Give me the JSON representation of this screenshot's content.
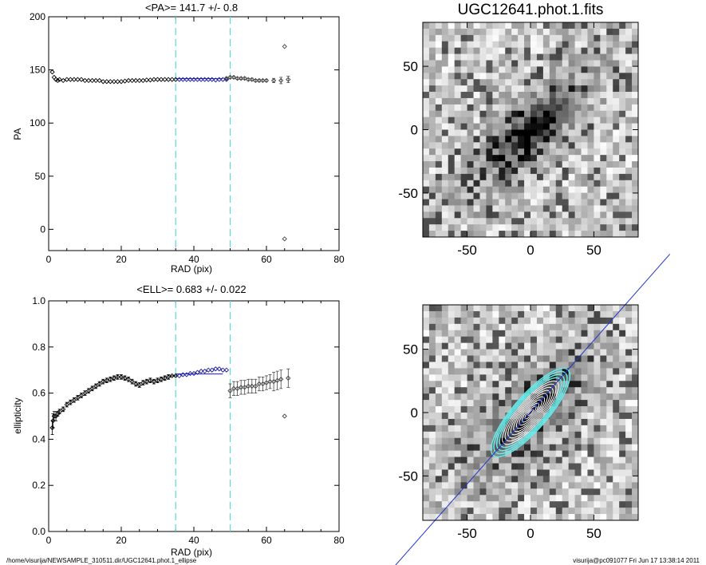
{
  "chart_data": [
    {
      "type": "scatter",
      "title": "<PA>= 141.7 +/-   0.8",
      "xlabel": "RAD (pix)",
      "ylabel": "PA",
      "xlim": [
        0,
        80
      ],
      "ylim": [
        -20,
        200
      ],
      "xticks": [
        "0",
        "20",
        "40",
        "60",
        "80"
      ],
      "yticks": [
        "0",
        "50",
        "100",
        "150",
        "200"
      ],
      "vlines": [
        35,
        50
      ],
      "fit": {
        "value": 141.7,
        "x_range": [
          35,
          50
        ]
      },
      "series": [
        {
          "points": [
            [
              1,
              148
            ],
            [
              1.5,
              143
            ],
            [
              2,
              141
            ],
            [
              2.5,
              140
            ],
            [
              3,
              141
            ],
            [
              4,
              140
            ],
            [
              5,
              141
            ],
            [
              6,
              141
            ],
            [
              7,
              141
            ],
            [
              8,
              141
            ],
            [
              9,
              141
            ],
            [
              10,
              140
            ],
            [
              11,
              140
            ],
            [
              12,
              140
            ],
            [
              13,
              140
            ],
            [
              14,
              140
            ],
            [
              15,
              139
            ],
            [
              16,
              139
            ],
            [
              17,
              139
            ],
            [
              18,
              139
            ],
            [
              19,
              139
            ],
            [
              20,
              139
            ],
            [
              21,
              139.5
            ],
            [
              22,
              140
            ],
            [
              23,
              140
            ],
            [
              24,
              140
            ],
            [
              25,
              140
            ],
            [
              26,
              140
            ],
            [
              27,
              140.5
            ],
            [
              28,
              140.5
            ],
            [
              29,
              141
            ],
            [
              30,
              141
            ],
            [
              31,
              141
            ],
            [
              32,
              141
            ],
            [
              33,
              141
            ],
            [
              34,
              141
            ],
            [
              35,
              141
            ]
          ]
        },
        {
          "points": [
            [
              36,
              141
            ],
            [
              37,
              141
            ],
            [
              38,
              141
            ],
            [
              39,
              141
            ],
            [
              40,
              141
            ],
            [
              41,
              141
            ],
            [
              42,
              141
            ],
            [
              43,
              141
            ],
            [
              44,
              141
            ],
            [
              45,
              141
            ],
            [
              46,
              140.5
            ],
            [
              47,
              141
            ],
            [
              48,
              141
            ],
            [
              49,
              141
            ]
          ]
        },
        {
          "points": [
            [
              49,
              142
            ],
            [
              50,
              143
            ],
            [
              51,
              143
            ],
            [
              52,
              142
            ],
            [
              53,
              142
            ],
            [
              54,
              142
            ],
            [
              55,
              141
            ],
            [
              56,
              141
            ],
            [
              57,
              140
            ],
            [
              58,
              140
            ],
            [
              59,
              140
            ],
            [
              60,
              140
            ],
            [
              62,
              140
            ],
            [
              64,
              140
            ],
            [
              66,
              141
            ]
          ],
          "errors": [
            1,
            1,
            1,
            1,
            1,
            1,
            1,
            1,
            1,
            1,
            1,
            1,
            2,
            3,
            3
          ]
        },
        {
          "points": [
            [
              65,
              172
            ],
            [
              65,
              -9
            ]
          ]
        }
      ]
    },
    {
      "type": "scatter",
      "title": "<ELL>= 0.683 +/-  0.022",
      "xlabel": "RAD (pix)",
      "ylabel": "ellipticity",
      "xlim": [
        0,
        80
      ],
      "ylim": [
        0.0,
        1.0
      ],
      "xticks": [
        "0",
        "20",
        "40",
        "60",
        "80"
      ],
      "yticks": [
        "0.0",
        "0.2",
        "0.4",
        "0.6",
        "0.8",
        "1.0"
      ],
      "vlines": [
        35,
        50
      ],
      "fit": {
        "value": 0.683,
        "x_range": [
          35,
          50
        ]
      },
      "series": [
        {
          "points": [
            [
              1,
              0.45
            ],
            [
              1.2,
              0.48
            ],
            [
              1.5,
              0.5
            ],
            [
              2,
              0.5
            ],
            [
              2.5,
              0.51
            ],
            [
              3,
              0.52
            ],
            [
              4,
              0.53
            ],
            [
              5,
              0.55
            ],
            [
              6,
              0.56
            ],
            [
              7,
              0.57
            ],
            [
              8,
              0.58
            ],
            [
              9,
              0.59
            ],
            [
              10,
              0.6
            ],
            [
              11,
              0.61
            ],
            [
              12,
              0.62
            ],
            [
              13,
              0.63
            ],
            [
              14,
              0.64
            ],
            [
              15,
              0.65
            ],
            [
              16,
              0.655
            ],
            [
              17,
              0.66
            ],
            [
              18,
              0.665
            ],
            [
              19,
              0.67
            ],
            [
              20,
              0.67
            ],
            [
              21,
              0.665
            ],
            [
              22,
              0.66
            ],
            [
              23,
              0.65
            ],
            [
              24,
              0.64
            ],
            [
              25,
              0.635
            ],
            [
              26,
              0.645
            ],
            [
              27,
              0.65
            ],
            [
              28,
              0.655
            ],
            [
              29,
              0.65
            ],
            [
              30,
              0.655
            ],
            [
              31,
              0.66
            ],
            [
              32,
              0.665
            ],
            [
              33,
              0.67
            ],
            [
              34,
              0.675
            ],
            [
              35,
              0.675
            ]
          ],
          "errors": [
            0.03,
            0.03,
            0.02,
            0.02,
            0.01,
            0.01,
            0.01,
            0.01,
            0.01,
            0.01,
            0.01,
            0.01,
            0.01,
            0.01,
            0.01,
            0.01,
            0.01,
            0.01,
            0.01,
            0.01,
            0.01,
            0.01,
            0.01,
            0.01,
            0.01,
            0.01,
            0.01,
            0.01,
            0.01,
            0.01,
            0.01,
            0.01,
            0.01,
            0.01,
            0.01,
            0.01
          ]
        },
        {
          "points": [
            [
              36,
              0.675
            ],
            [
              37,
              0.68
            ],
            [
              38,
              0.68
            ],
            [
              39,
              0.685
            ],
            [
              40,
              0.685
            ],
            [
              41,
              0.69
            ],
            [
              42,
              0.695
            ],
            [
              43,
              0.695
            ],
            [
              44,
              0.7
            ],
            [
              45,
              0.7
            ],
            [
              46,
              0.705
            ],
            [
              47,
              0.705
            ],
            [
              48,
              0.7
            ],
            [
              49,
              0.7
            ]
          ]
        },
        {
          "points": [
            [
              50,
              0.61
            ],
            [
              51,
              0.62
            ],
            [
              52,
              0.62
            ],
            [
              53,
              0.625
            ],
            [
              54,
              0.625
            ],
            [
              55,
              0.63
            ],
            [
              56,
              0.63
            ],
            [
              57,
              0.63
            ],
            [
              58,
              0.64
            ],
            [
              59,
              0.64
            ],
            [
              60,
              0.645
            ],
            [
              61,
              0.65
            ],
            [
              62,
              0.65
            ],
            [
              63,
              0.655
            ],
            [
              64,
              0.66
            ],
            [
              66,
              0.665
            ]
          ],
          "errors": [
            0.03,
            0.03,
            0.03,
            0.03,
            0.03,
            0.03,
            0.03,
            0.03,
            0.03,
            0.03,
            0.03,
            0.03,
            0.04,
            0.04,
            0.04,
            0.04
          ]
        },
        {
          "points": [
            [
              65,
              0.5
            ]
          ]
        }
      ]
    },
    {
      "type": "heatmap",
      "title": "UGC12641.phot.1.fits",
      "xticks": [
        "-50",
        "0",
        "50"
      ],
      "yticks": [
        "50",
        "0",
        "-50"
      ],
      "xlim": [
        -85,
        85
      ],
      "ylim": [
        -85,
        85
      ],
      "galaxy": {
        "pa_deg": 141.7,
        "ellipticity": 0.683
      }
    },
    {
      "type": "heatmap",
      "title": "",
      "xticks": [
        "-50",
        "0",
        "50"
      ],
      "yticks": [
        "50",
        "0",
        "-50"
      ],
      "xlim": [
        -85,
        85
      ],
      "ylim": [
        -85,
        85
      ],
      "galaxy": {
        "pa_deg": 141.7,
        "ellipticity": 0.683
      },
      "contours": "white",
      "fit_contours": "cyan",
      "major_axis_line": "blue"
    }
  ],
  "footer": {
    "left": "/home/visurija/NEWSAMPLE_310511.dir/UGC12641.phot.1_ellipse",
    "right": "visurija@pc091077  Fri Jun 17 13:38:14 2011"
  },
  "colors": {
    "inner": "#000000",
    "fit_range": "#1a1aa0",
    "outer": "#444444",
    "vline": "#5fd8d8",
    "fit_line": "#1a1ad0"
  }
}
